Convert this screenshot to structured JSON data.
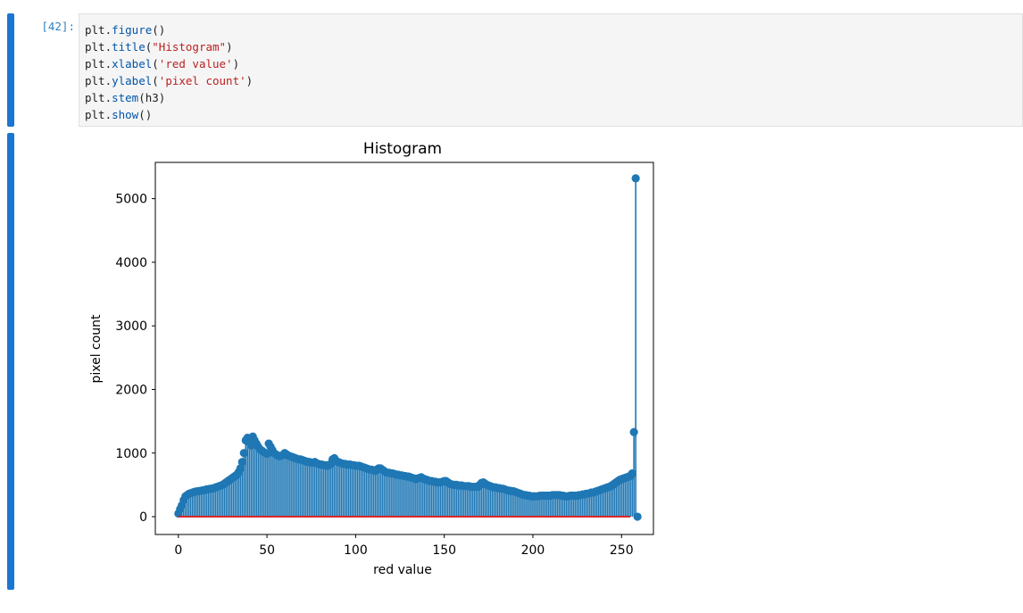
{
  "cell": {
    "prompt": "[42]:",
    "code_lines": [
      [
        {
          "t": "plt."
        },
        {
          "t": "figure",
          "c": "fn"
        },
        {
          "t": "()"
        }
      ],
      [
        {
          "t": "plt."
        },
        {
          "t": "title",
          "c": "fn"
        },
        {
          "t": "("
        },
        {
          "t": "\"Histogram\"",
          "c": "str"
        },
        {
          "t": ")"
        }
      ],
      [
        {
          "t": "plt."
        },
        {
          "t": "xlabel",
          "c": "fn"
        },
        {
          "t": "("
        },
        {
          "t": "'red value'",
          "c": "str"
        },
        {
          "t": ")"
        }
      ],
      [
        {
          "t": "plt."
        },
        {
          "t": "ylabel",
          "c": "fn"
        },
        {
          "t": "("
        },
        {
          "t": "'pixel count'",
          "c": "str"
        },
        {
          "t": ")"
        }
      ],
      [
        {
          "t": "plt."
        },
        {
          "t": "stem",
          "c": "fn"
        },
        {
          "t": "(h3)"
        }
      ],
      [
        {
          "t": "plt."
        },
        {
          "t": "show",
          "c": "fn"
        },
        {
          "t": "()"
        }
      ]
    ]
  },
  "colors": {
    "cell_bar": "#1976d2",
    "stem": "#1f77b4",
    "baseline": "#d62728",
    "code_fn": "#0055aa",
    "code_str": "#ba2121"
  },
  "chart_data": {
    "type": "stem",
    "title": "Histogram",
    "xlabel": "red value",
    "ylabel": "pixel count",
    "xlim": [
      -13,
      268
    ],
    "ylim": [
      -280,
      5570
    ],
    "xticks": [
      0,
      50,
      100,
      150,
      200,
      250
    ],
    "yticks": [
      0,
      1000,
      2000,
      3000,
      4000,
      5000
    ],
    "grid": false,
    "x_range": [
      0,
      255
    ],
    "values": [
      50,
      120,
      180,
      260,
      320,
      340,
      360,
      370,
      380,
      390,
      395,
      400,
      405,
      410,
      415,
      420,
      430,
      430,
      440,
      440,
      450,
      460,
      470,
      480,
      490,
      500,
      520,
      540,
      560,
      580,
      600,
      620,
      640,
      660,
      700,
      760,
      860,
      1000,
      1200,
      1240,
      1170,
      1120,
      1260,
      1200,
      1150,
      1100,
      1060,
      1040,
      1020,
      1000,
      990,
      1150,
      1100,
      1050,
      1000,
      980,
      960,
      950,
      960,
      970,
      1000,
      980,
      960,
      950,
      940,
      930,
      920,
      910,
      900,
      900,
      890,
      880,
      870,
      860,
      860,
      850,
      850,
      860,
      840,
      830,
      820,
      820,
      810,
      810,
      800,
      810,
      830,
      900,
      920,
      880,
      860,
      850,
      840,
      830,
      830,
      820,
      820,
      820,
      810,
      810,
      800,
      800,
      800,
      790,
      780,
      770,
      760,
      750,
      740,
      740,
      730,
      720,
      740,
      760,
      760,
      740,
      720,
      700,
      690,
      690,
      680,
      680,
      670,
      660,
      660,
      650,
      650,
      640,
      640,
      630,
      630,
      620,
      610,
      600,
      590,
      600,
      610,
      620,
      600,
      590,
      580,
      570,
      560,
      560,
      550,
      550,
      540,
      540,
      540,
      550,
      560,
      560,
      540,
      520,
      510,
      500,
      500,
      500,
      490,
      490,
      490,
      480,
      480,
      480,
      480,
      470,
      470,
      470,
      470,
      470,
      500,
      530,
      540,
      520,
      500,
      490,
      480,
      470,
      460,
      460,
      450,
      450,
      440,
      440,
      430,
      420,
      410,
      410,
      400,
      400,
      390,
      380,
      370,
      360,
      350,
      340,
      340,
      330,
      330,
      320,
      320,
      320,
      320,
      320,
      330,
      330,
      330,
      330,
      330,
      330,
      330,
      340,
      340,
      340,
      340,
      340,
      330,
      330,
      320,
      320,
      320,
      330,
      330,
      330,
      330,
      330,
      340,
      340,
      350,
      350,
      360,
      360,
      370,
      380,
      380,
      390,
      400,
      410,
      420,
      430,
      440,
      450,
      460,
      470,
      480,
      500,
      520,
      540,
      560,
      580,
      590,
      600,
      610,
      620,
      630,
      640,
      680,
      1330,
      5320,
      0
    ]
  }
}
